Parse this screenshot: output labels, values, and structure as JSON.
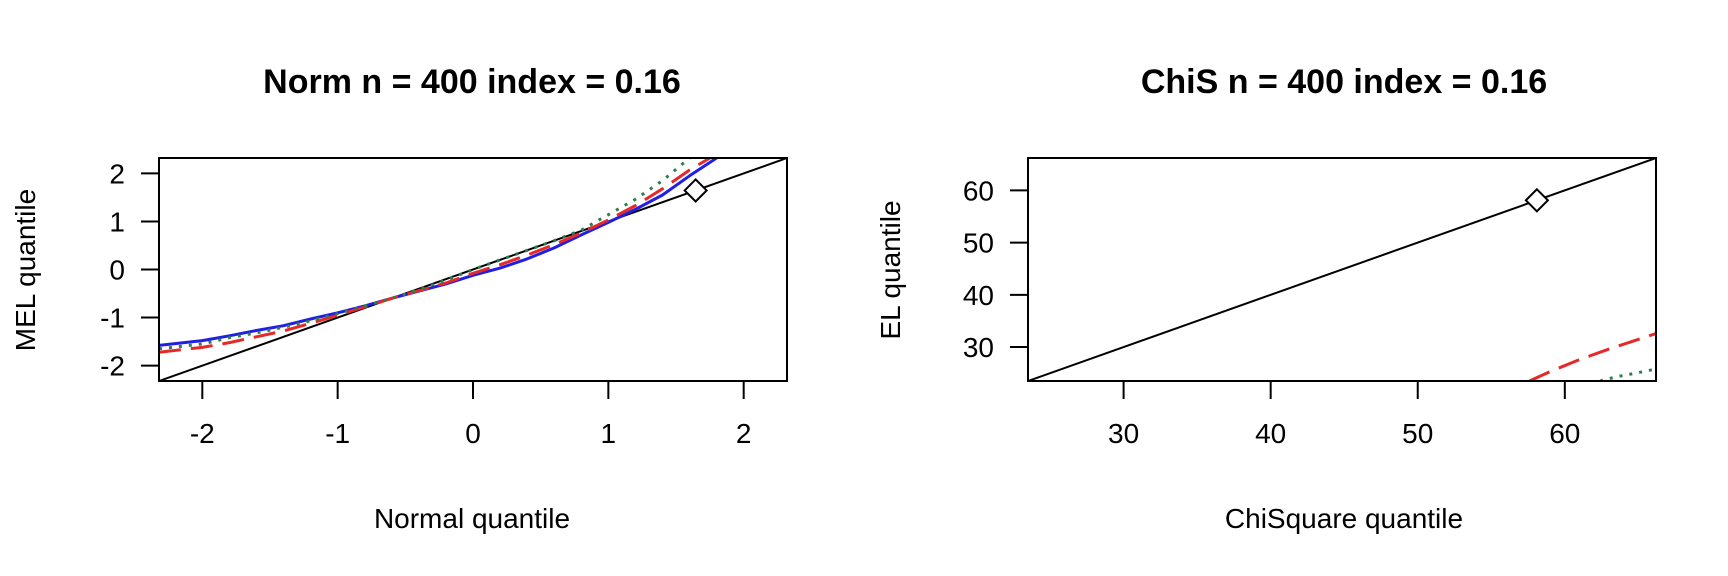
{
  "chart_data": [
    {
      "type": "line",
      "title": "Norm n = 400 index = 0.16",
      "xlabel": "Normal quantile",
      "ylabel": "MEL quantile",
      "xlim": [
        -2.32,
        2.32
      ],
      "ylim": [
        -2.32,
        2.32
      ],
      "xticks": [
        -2,
        -1,
        0,
        1,
        2
      ],
      "yticks": [
        -2,
        -1,
        0,
        1,
        2
      ],
      "reference_line": {
        "slope": 1,
        "intercept": 0,
        "color": "#000000",
        "style": "solid"
      },
      "marker": {
        "shape": "diamond",
        "x": 1.645,
        "y": 1.645
      },
      "series": [
        {
          "color": "#1f1fe6",
          "style": "solid",
          "x": [
            -2.32,
            -2.0,
            -1.8,
            -1.6,
            -1.4,
            -1.2,
            -1.0,
            -0.8,
            -0.6,
            -0.4,
            -0.2,
            0.0,
            0.2,
            0.4,
            0.6,
            0.8,
            1.0,
            1.2,
            1.4,
            1.6,
            1.8
          ],
          "y": [
            -1.58,
            -1.48,
            -1.38,
            -1.27,
            -1.17,
            -1.03,
            -0.9,
            -0.76,
            -0.6,
            -0.45,
            -0.3,
            -0.12,
            0.03,
            0.22,
            0.45,
            0.72,
            0.98,
            1.25,
            1.55,
            1.95,
            2.32
          ]
        },
        {
          "color": "#e62828",
          "style": "dashed",
          "x": [
            -2.32,
            -2.0,
            -1.8,
            -1.6,
            -1.4,
            -1.2,
            -1.0,
            -0.8,
            -0.6,
            -0.4,
            -0.2,
            0.0,
            0.2,
            0.4,
            0.6,
            0.8,
            1.0,
            1.2,
            1.4,
            1.6,
            1.75
          ],
          "y": [
            -1.72,
            -1.62,
            -1.52,
            -1.4,
            -1.28,
            -1.12,
            -0.95,
            -0.78,
            -0.6,
            -0.44,
            -0.28,
            -0.08,
            0.1,
            0.3,
            0.52,
            0.76,
            1.03,
            1.33,
            1.68,
            2.07,
            2.32
          ]
        },
        {
          "color": "#2e7d4f",
          "style": "dotted",
          "x": [
            -2.32,
            -2.0,
            -1.8,
            -1.6,
            -1.4,
            -1.2,
            -1.0,
            -0.8,
            -0.6,
            -0.4,
            -0.2,
            0.0,
            0.2,
            0.4,
            0.6,
            0.8,
            1.0,
            1.2,
            1.4,
            1.6
          ],
          "y": [
            -1.65,
            -1.55,
            -1.42,
            -1.32,
            -1.2,
            -1.07,
            -0.92,
            -0.76,
            -0.6,
            -0.42,
            -0.22,
            0.0,
            0.2,
            0.4,
            0.6,
            0.82,
            1.14,
            1.46,
            1.85,
            2.32
          ]
        }
      ]
    },
    {
      "type": "line",
      "title": "ChiS n = 400 index = 0.16",
      "xlabel": "ChiSquare quantile",
      "ylabel": "EL quantile",
      "xlim": [
        23.5,
        66.2
      ],
      "ylim": [
        23.5,
        66.2
      ],
      "xticks": [
        30,
        40,
        50,
        60
      ],
      "yticks": [
        30,
        40,
        50,
        60
      ],
      "reference_line": {
        "slope": 1,
        "intercept": 0,
        "color": "#000000",
        "style": "solid"
      },
      "marker": {
        "shape": "diamond",
        "x": 58.1,
        "y": 58.1
      },
      "series": [
        {
          "color": "#e62828",
          "style": "dashed",
          "x": [
            57.6,
            59.0,
            61.0,
            63.0,
            64.5,
            66.2
          ],
          "y": [
            23.5,
            25.3,
            27.6,
            29.6,
            31.0,
            32.6
          ]
        },
        {
          "color": "#2e7d4f",
          "style": "dotted",
          "x": [
            62.4,
            63.5,
            64.8,
            66.2
          ],
          "y": [
            23.5,
            24.3,
            25.0,
            25.8
          ]
        }
      ]
    }
  ]
}
